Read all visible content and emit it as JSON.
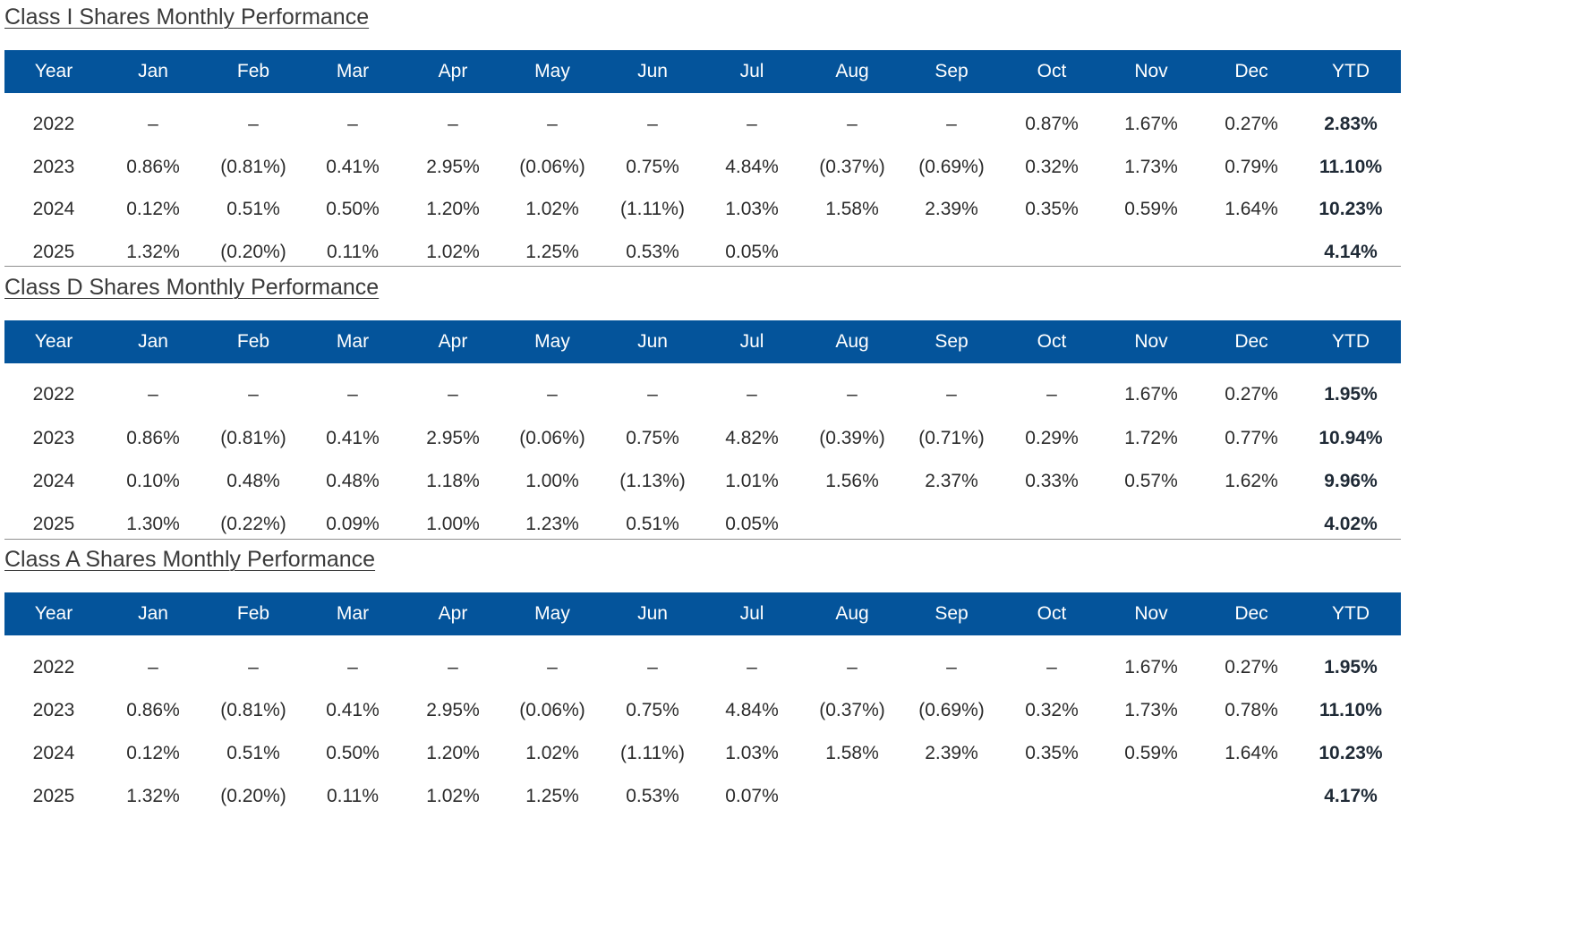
{
  "columns": [
    "Year",
    "Jan",
    "Feb",
    "Mar",
    "Apr",
    "May",
    "Jun",
    "Jul",
    "Aug",
    "Sep",
    "Oct",
    "Nov",
    "Dec",
    "YTD"
  ],
  "colors": {
    "header_bg": "#04549b",
    "header_text": "#ffffff",
    "body_text": "#2b2b2b",
    "divider": "#8f8f8f"
  },
  "tables": [
    {
      "title": "Class I Shares Monthly Performance",
      "rows": [
        [
          "2022",
          "–",
          "–",
          "–",
          "–",
          "–",
          "–",
          "–",
          "–",
          "–",
          "0.87%",
          "1.67%",
          "0.27%",
          "2.83%"
        ],
        [
          "2023",
          "0.86%",
          "(0.81%)",
          "0.41%",
          "2.95%",
          "(0.06%)",
          "0.75%",
          "4.84%",
          "(0.37%)",
          "(0.69%)",
          "0.32%",
          "1.73%",
          "0.79%",
          "11.10%"
        ],
        [
          "2024",
          "0.12%",
          "0.51%",
          "0.50%",
          "1.20%",
          "1.02%",
          "(1.11%)",
          "1.03%",
          "1.58%",
          "2.39%",
          "0.35%",
          "0.59%",
          "1.64%",
          "10.23%"
        ],
        [
          "2025",
          "1.32%",
          "(0.20%)",
          "0.11%",
          "1.02%",
          "1.25%",
          "0.53%",
          "0.05%",
          "",
          "",
          "",
          "",
          "",
          "4.14%"
        ]
      ]
    },
    {
      "title": "Class D Shares Monthly Performance",
      "rows": [
        [
          "2022",
          "–",
          "–",
          "–",
          "–",
          "–",
          "–",
          "–",
          "–",
          "–",
          "–",
          "1.67%",
          "0.27%",
          "1.95%"
        ],
        [
          "2023",
          "0.86%",
          "(0.81%)",
          "0.41%",
          "2.95%",
          "(0.06%)",
          "0.75%",
          "4.82%",
          "(0.39%)",
          "(0.71%)",
          "0.29%",
          "1.72%",
          "0.77%",
          "10.94%"
        ],
        [
          "2024",
          "0.10%",
          "0.48%",
          "0.48%",
          "1.18%",
          "1.00%",
          "(1.13%)",
          "1.01%",
          "1.56%",
          "2.37%",
          "0.33%",
          "0.57%",
          "1.62%",
          "9.96%"
        ],
        [
          "2025",
          "1.30%",
          "(0.22%)",
          "0.09%",
          "1.00%",
          "1.23%",
          "0.51%",
          "0.05%",
          "",
          "",
          "",
          "",
          "",
          "4.02%"
        ]
      ]
    },
    {
      "title": "Class A Shares Monthly Performance",
      "rows": [
        [
          "2022",
          "–",
          "–",
          "–",
          "–",
          "–",
          "–",
          "–",
          "–",
          "–",
          "–",
          "1.67%",
          "0.27%",
          "1.95%"
        ],
        [
          "2023",
          "0.86%",
          "(0.81%)",
          "0.41%",
          "2.95%",
          "(0.06%)",
          "0.75%",
          "4.84%",
          "(0.37%)",
          "(0.69%)",
          "0.32%",
          "1.73%",
          "0.78%",
          "11.10%"
        ],
        [
          "2024",
          "0.12%",
          "0.51%",
          "0.50%",
          "1.20%",
          "1.02%",
          "(1.11%)",
          "1.03%",
          "1.58%",
          "2.39%",
          "0.35%",
          "0.59%",
          "1.64%",
          "10.23%"
        ],
        [
          "2025",
          "1.32%",
          "(0.20%)",
          "0.11%",
          "1.02%",
          "1.25%",
          "0.53%",
          "0.07%",
          "",
          "",
          "",
          "",
          "",
          "4.17%"
        ]
      ]
    }
  ]
}
